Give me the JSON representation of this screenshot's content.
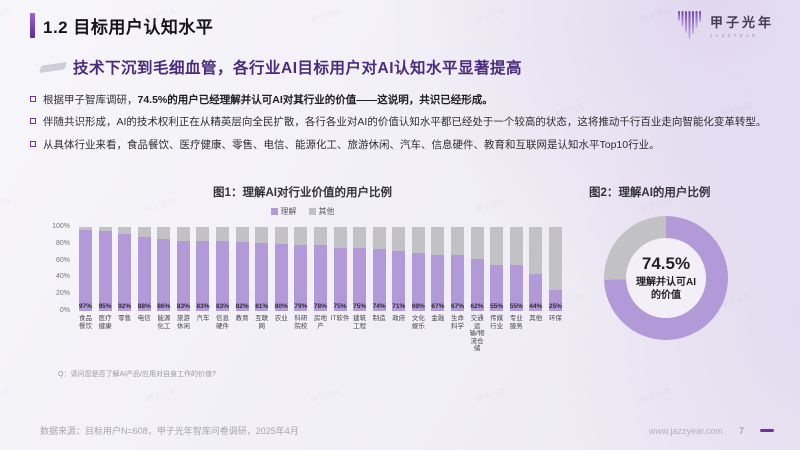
{
  "header": {
    "title": "1.2 目标用户认知水平",
    "logo_text": "甲子光年",
    "logo_sub": "JAZZYEAR"
  },
  "subtitle": "技术下沉到毛细血管，各行业AI目标用户对AI认知水平显著提高",
  "bullets": [
    {
      "lead": "根据甲子智库调研，",
      "strong": "74.5%的用户已经理解并认可AI对其行业的价值——这说明，共识已经形成。"
    },
    {
      "lead": "伴随共识形成，AI的技术权利正在从精英层向全民扩散，各行各业对AI的价值认知水平都已经处于一个较高的状态，这将推动千行百业走向智能化变革转型。",
      "strong": ""
    },
    {
      "lead": "从具体行业来看，食品餐饮、医疗健康、零售、电信、能源化工、旅游休闲、汽车、信息硬件、教育和互联网是认知水平Top10行业。",
      "strong": ""
    }
  ],
  "watermark_text": "甲子光年",
  "colors": {
    "accent": "#7030a0",
    "know_bar": "#b29ad8",
    "other_bar": "#c2c1c4",
    "subtitle": "#4a2b7d"
  },
  "chart_data": [
    {
      "type": "bar",
      "stacked": true,
      "title": "图1：理解AI对行业价值的用户比例",
      "legend": [
        "理解",
        "其他"
      ],
      "legend_position": "top",
      "grid": false,
      "categories": [
        "食品餐饮",
        "医疗健康",
        "零售",
        "电信",
        "能源化工",
        "旅游休闲",
        "汽车",
        "信息硬件",
        "教育",
        "互联网",
        "农业",
        "科研院校",
        "房地产",
        "IT软件",
        "建筑工程",
        "制造",
        "政府",
        "文化娱乐",
        "金融",
        "生命科学",
        "交通运输/物流仓储",
        "传媒行业",
        "专业服务",
        "其他",
        "环保"
      ],
      "category_lines": [
        [
          "食品",
          "餐饮"
        ],
        [
          "医疗",
          "健康"
        ],
        [
          "零售"
        ],
        [
          "电信"
        ],
        [
          "能源",
          "化工"
        ],
        [
          "旅游",
          "休闲"
        ],
        [
          "汽车"
        ],
        [
          "信息",
          "硬件"
        ],
        [
          "教育"
        ],
        [
          "互联网"
        ],
        [
          "农业"
        ],
        [
          "科研",
          "院校"
        ],
        [
          "房地产"
        ],
        [
          "IT软件"
        ],
        [
          "建筑",
          "工程"
        ],
        [
          "制造"
        ],
        [
          "政府"
        ],
        [
          "文化",
          "娱乐"
        ],
        [
          "金融"
        ],
        [
          "生命",
          "科学"
        ],
        [
          "交通运",
          "输/物",
          "流仓储"
        ],
        [
          "传媒",
          "行业"
        ],
        [
          "专业",
          "服务"
        ],
        [
          "其他"
        ],
        [
          "环保"
        ]
      ],
      "series": [
        {
          "name": "理解",
          "values": [
            97,
            95,
            92,
            88,
            86,
            83,
            83,
            83,
            82,
            81,
            80,
            79,
            78,
            75,
            75,
            74,
            71,
            69,
            67,
            67,
            62,
            55,
            55,
            44,
            25
          ]
        },
        {
          "name": "其他",
          "values": [
            3,
            5,
            8,
            12,
            14,
            17,
            17,
            17,
            18,
            19,
            20,
            21,
            22,
            25,
            25,
            26,
            29,
            31,
            33,
            33,
            38,
            45,
            45,
            56,
            75
          ]
        }
      ],
      "ylim": [
        0,
        100
      ],
      "yticks": [
        "100%",
        "80%",
        "60%",
        "40%",
        "20%",
        "0%"
      ],
      "note": "Q：请问您是否了解AI产品/应用对自身工作的价值?"
    },
    {
      "type": "pie",
      "title": "图2：理解AI的用户比例",
      "slices": [
        {
          "label": "理解并认可AI的价值",
          "value": 74.5,
          "color": "#b29ad8"
        },
        {
          "label": "其他",
          "value": 25.5,
          "color": "#c2c1c4"
        }
      ],
      "center_value": "74.5%",
      "center_label_line1": "理解并认可AI",
      "center_label_line2": "的价值"
    }
  ],
  "footer": {
    "source": "数据来源：目标用户N=608，甲子光年智库问卷调研，2025年4月",
    "website": "www.jazzyear.com",
    "page": "7"
  }
}
